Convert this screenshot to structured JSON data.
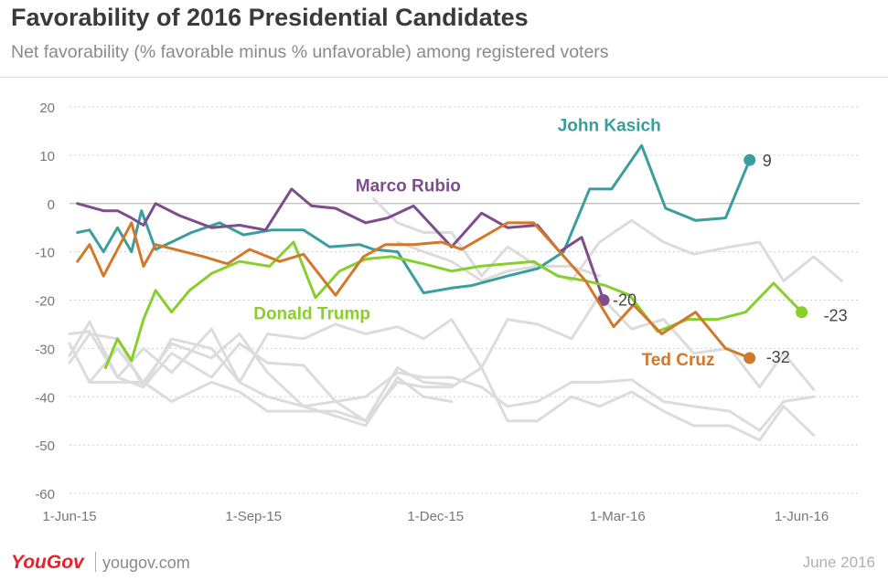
{
  "header": {
    "title": "Favorability of 2016 Presidential Candidates",
    "subtitle": "Net favorability (% favorable minus % unfavorable) among registered voters"
  },
  "footer": {
    "logo": "YouGov",
    "site": "yougov.com",
    "date": "June 2016"
  },
  "chart_data": {
    "type": "line",
    "title": "Favorability of 2016 Presidential Candidates",
    "subtitle": "Net favorability (% favorable minus % unfavorable) among registered voters",
    "xlabel": "",
    "ylabel": "",
    "ylim": [
      -60,
      20
    ],
    "yticks": [
      20,
      10,
      0,
      -10,
      -20,
      -30,
      -40,
      -50,
      -60
    ],
    "xticks": [
      {
        "date": "2015-06-01",
        "label": "1-Jun-15"
      },
      {
        "date": "2015-09-01",
        "label": "1-Sep-15"
      },
      {
        "date": "2015-12-01",
        "label": "1-Dec-15"
      },
      {
        "date": "2016-03-01",
        "label": "1-Mar-16"
      },
      {
        "date": "2016-06-01",
        "label": "1-Jun-16"
      }
    ],
    "xlim": [
      "2015-06-01",
      "2016-06-30"
    ],
    "grid": "horizontal dotted",
    "background_series_color": "#dcdcdc",
    "series": [
      {
        "name": "John Kasich",
        "color": "#3a9e9e",
        "end_label": "9",
        "points": [
          [
            "2015-06-05",
            -6
          ],
          [
            "2015-06-11",
            -5.5
          ],
          [
            "2015-06-18",
            -10
          ],
          [
            "2015-06-25",
            -5
          ],
          [
            "2015-07-02",
            -10
          ],
          [
            "2015-07-07",
            -1.5
          ],
          [
            "2015-07-14",
            -9.5
          ],
          [
            "2015-07-22",
            -8
          ],
          [
            "2015-08-01",
            -6
          ],
          [
            "2015-08-15",
            -4
          ],
          [
            "2015-08-27",
            -6.5
          ],
          [
            "2015-09-10",
            -5.5
          ],
          [
            "2015-09-26",
            -5.5
          ],
          [
            "2015-10-09",
            -9
          ],
          [
            "2015-10-24",
            -8.5
          ],
          [
            "2015-10-31",
            -9.5
          ],
          [
            "2015-11-12",
            -10
          ],
          [
            "2015-11-25",
            -18.5
          ],
          [
            "2015-12-09",
            -17.5
          ],
          [
            "2015-12-19",
            -17
          ],
          [
            "2016-01-06",
            -15
          ],
          [
            "2016-01-21",
            -13.5
          ],
          [
            "2016-02-03",
            -10
          ],
          [
            "2016-02-16",
            3
          ],
          [
            "2016-02-27",
            3
          ],
          [
            "2016-03-13",
            12
          ],
          [
            "2016-03-25",
            -1
          ],
          [
            "2016-04-09",
            -3.5
          ],
          [
            "2016-04-24",
            -3
          ],
          [
            "2016-05-06",
            9
          ]
        ]
      },
      {
        "name": "Marco Rubio",
        "color": "#7d4d8c",
        "end_label": "-20",
        "points": [
          [
            "2015-06-05",
            0
          ],
          [
            "2015-06-18",
            -1.5
          ],
          [
            "2015-06-25",
            -1.5
          ],
          [
            "2015-07-02",
            -3
          ],
          [
            "2015-07-08",
            -4.5
          ],
          [
            "2015-07-14",
            0
          ],
          [
            "2015-07-26",
            -2.5
          ],
          [
            "2015-08-11",
            -5
          ],
          [
            "2015-08-25",
            -4.5
          ],
          [
            "2015-09-07",
            -5.5
          ],
          [
            "2015-09-20",
            3
          ],
          [
            "2015-09-30",
            -0.5
          ],
          [
            "2015-10-12",
            -1
          ],
          [
            "2015-10-27",
            -4
          ],
          [
            "2015-11-07",
            -3
          ],
          [
            "2015-11-20",
            -0.5
          ],
          [
            "2015-12-09",
            -9
          ],
          [
            "2015-12-24",
            -2
          ],
          [
            "2016-01-06",
            -5
          ],
          [
            "2016-01-21",
            -4.5
          ],
          [
            "2016-02-01",
            -10
          ],
          [
            "2016-02-12",
            -7
          ],
          [
            "2016-02-23",
            -20
          ]
        ]
      },
      {
        "name": "Donald Trump",
        "color": "#88cf2b",
        "end_label": "-23",
        "points": [
          [
            "2015-06-19",
            -34
          ],
          [
            "2015-06-25",
            -28
          ],
          [
            "2015-07-02",
            -32.5
          ],
          [
            "2015-07-08",
            -24
          ],
          [
            "2015-07-14",
            -18
          ],
          [
            "2015-07-22",
            -22.5
          ],
          [
            "2015-07-31",
            -18
          ],
          [
            "2015-08-11",
            -14.5
          ],
          [
            "2015-08-25",
            -12
          ],
          [
            "2015-09-09",
            -13
          ],
          [
            "2015-09-21",
            -8
          ],
          [
            "2015-10-02",
            -19.5
          ],
          [
            "2015-10-14",
            -14
          ],
          [
            "2015-10-27",
            -11.5
          ],
          [
            "2015-11-09",
            -11
          ],
          [
            "2015-11-25",
            -12.5
          ],
          [
            "2015-12-09",
            -14
          ],
          [
            "2015-12-23",
            -13
          ],
          [
            "2016-01-06",
            -12.5
          ],
          [
            "2016-01-19",
            -12
          ],
          [
            "2016-01-31",
            -15
          ],
          [
            "2016-02-14",
            -16
          ],
          [
            "2016-02-24",
            -17
          ],
          [
            "2016-03-07",
            -19
          ],
          [
            "2016-03-21",
            -26.5
          ],
          [
            "2016-04-05",
            -24
          ],
          [
            "2016-04-20",
            -24
          ],
          [
            "2016-05-04",
            -22.5
          ],
          [
            "2016-05-18",
            -16.5
          ],
          [
            "2016-06-01",
            -22.5
          ]
        ]
      },
      {
        "name": "Ted Cruz",
        "color": "#d2782b",
        "end_label": "-32",
        "points": [
          [
            "2015-06-05",
            -12
          ],
          [
            "2015-06-11",
            -8.5
          ],
          [
            "2015-06-18",
            -15
          ],
          [
            "2015-07-02",
            -4
          ],
          [
            "2015-07-08",
            -13
          ],
          [
            "2015-07-14",
            -8.5
          ],
          [
            "2015-08-07",
            -11
          ],
          [
            "2015-08-19",
            -12.5
          ],
          [
            "2015-08-30",
            -9.5
          ],
          [
            "2015-09-14",
            -12
          ],
          [
            "2015-09-26",
            -10.5
          ],
          [
            "2015-10-12",
            -19
          ],
          [
            "2015-10-26",
            -11
          ],
          [
            "2015-11-06",
            -8.5
          ],
          [
            "2015-11-20",
            -8.5
          ],
          [
            "2015-12-04",
            -8
          ],
          [
            "2015-12-14",
            -9.5
          ],
          [
            "2016-01-06",
            -4
          ],
          [
            "2016-01-19",
            -4
          ],
          [
            "2016-01-31",
            -9.5
          ],
          [
            "2016-02-14",
            -16
          ],
          [
            "2016-02-28",
            -25.5
          ],
          [
            "2016-03-09",
            -21
          ],
          [
            "2016-03-23",
            -27
          ],
          [
            "2016-04-09",
            -22.5
          ],
          [
            "2016-04-24",
            -30
          ],
          [
            "2016-05-06",
            -32
          ]
        ]
      }
    ],
    "background_series": [
      [
        [
          "2015-06-01",
          -27
        ],
        [
          "2015-06-11",
          -26.5
        ],
        [
          "2015-06-25",
          -36
        ],
        [
          "2015-07-08",
          -30
        ],
        [
          "2015-07-22",
          -35
        ],
        [
          "2015-08-11",
          -26
        ],
        [
          "2015-08-25",
          -37
        ],
        [
          "2015-09-08",
          -40
        ],
        [
          "2015-09-26",
          -42
        ],
        [
          "2015-10-12",
          -41
        ],
        [
          "2015-10-27",
          -40
        ],
        [
          "2015-11-12",
          -35
        ],
        [
          "2015-11-25",
          -36
        ],
        [
          "2015-12-09",
          -36
        ],
        [
          "2015-12-24",
          -38
        ],
        [
          "2016-01-06",
          -42
        ],
        [
          "2016-01-21",
          -41
        ],
        [
          "2016-02-07",
          -37
        ],
        [
          "2016-02-21",
          -37
        ],
        [
          "2016-03-08",
          -36.5
        ],
        [
          "2016-03-24",
          -41
        ],
        [
          "2016-04-08",
          -42
        ],
        [
          "2016-04-26",
          -43
        ],
        [
          "2016-05-11",
          -47
        ],
        [
          "2016-05-23",
          -41
        ],
        [
          "2016-06-07",
          -40
        ]
      ],
      [
        [
          "2015-06-01",
          -29
        ],
        [
          "2015-06-11",
          -37
        ],
        [
          "2015-06-25",
          -30
        ],
        [
          "2015-07-08",
          -37
        ],
        [
          "2015-07-22",
          -41
        ],
        [
          "2015-08-11",
          -37
        ],
        [
          "2015-08-25",
          -39
        ],
        [
          "2015-09-08",
          -43
        ],
        [
          "2015-09-26",
          -43
        ],
        [
          "2015-10-12",
          -43
        ],
        [
          "2015-10-27",
          -45
        ],
        [
          "2015-11-12",
          -37
        ],
        [
          "2015-11-25",
          -38
        ],
        [
          "2015-12-09",
          -38
        ],
        [
          "2015-12-24",
          -34
        ],
        [
          "2016-01-06",
          -45
        ],
        [
          "2016-01-21",
          -45
        ],
        [
          "2016-02-07",
          -40
        ],
        [
          "2016-02-21",
          -42
        ],
        [
          "2016-03-08",
          -39
        ],
        [
          "2016-03-24",
          -43
        ],
        [
          "2016-04-08",
          -46
        ],
        [
          "2016-04-26",
          -46
        ],
        [
          "2016-05-11",
          -49
        ],
        [
          "2016-05-23",
          -42
        ],
        [
          "2016-06-07",
          -48
        ]
      ],
      [
        [
          "2015-06-01",
          -31.5
        ],
        [
          "2015-06-11",
          -24.5
        ],
        [
          "2015-06-25",
          -36
        ],
        [
          "2015-07-08",
          -38
        ],
        [
          "2015-07-22",
          -31
        ],
        [
          "2015-08-11",
          -36
        ],
        [
          "2015-08-25",
          -29
        ],
        [
          "2015-09-08",
          -33
        ],
        [
          "2015-09-26",
          -33.5
        ],
        [
          "2015-10-12",
          -41
        ],
        [
          "2015-10-27",
          -45
        ],
        [
          "2015-11-12",
          -34
        ],
        [
          "2015-11-25",
          -37
        ],
        [
          "2015-12-09",
          -37.5
        ]
      ],
      [
        [
          "2015-06-11",
          -37
        ],
        [
          "2015-06-25",
          -37
        ],
        [
          "2015-07-08",
          -37
        ],
        [
          "2015-07-22",
          -29
        ],
        [
          "2015-08-11",
          -32
        ],
        [
          "2015-08-25",
          -27
        ],
        [
          "2015-09-08",
          -35
        ],
        [
          "2015-09-26",
          -42
        ],
        [
          "2015-10-12",
          -44
        ],
        [
          "2015-10-27",
          -46
        ],
        [
          "2015-11-12",
          -36
        ],
        [
          "2015-11-25",
          -40
        ],
        [
          "2015-12-09",
          -41
        ]
      ],
      [
        [
          "2015-06-01",
          -33
        ],
        [
          "2015-06-11",
          -27
        ],
        [
          "2015-06-25",
          -28
        ],
        [
          "2015-07-08",
          -38
        ],
        [
          "2015-07-22",
          -28
        ],
        [
          "2015-08-11",
          -30
        ],
        [
          "2015-08-25",
          -37
        ],
        [
          "2015-09-08",
          -27
        ],
        [
          "2015-09-26",
          -28
        ],
        [
          "2015-10-12",
          -25
        ],
        [
          "2015-10-27",
          -27
        ],
        [
          "2015-11-12",
          -25.5
        ],
        [
          "2015-11-25",
          -28
        ],
        [
          "2015-12-09",
          -24
        ],
        [
          "2015-12-24",
          -34
        ],
        [
          "2016-01-06",
          -24
        ],
        [
          "2016-01-21",
          -25
        ],
        [
          "2016-02-07",
          -28
        ],
        [
          "2016-02-21",
          -19
        ],
        [
          "2016-03-08",
          -26
        ],
        [
          "2016-03-24",
          -24
        ],
        [
          "2016-04-08",
          -31
        ],
        [
          "2016-04-26",
          -30
        ],
        [
          "2016-05-11",
          -38
        ],
        [
          "2016-05-23",
          -31
        ],
        [
          "2016-06-07",
          -38.5
        ]
      ],
      [
        [
          "2015-10-31",
          1
        ],
        [
          "2015-11-12",
          -4
        ],
        [
          "2015-11-25",
          -6
        ],
        [
          "2015-12-09",
          -6
        ],
        [
          "2015-12-24",
          -15
        ],
        [
          "2016-01-06",
          -9
        ],
        [
          "2016-01-21",
          -13
        ],
        [
          "2016-02-07",
          -16
        ],
        [
          "2016-02-21",
          -8
        ],
        [
          "2016-03-08",
          -3.5
        ],
        [
          "2016-03-24",
          -8
        ],
        [
          "2016-04-08",
          -10.5
        ],
        [
          "2016-04-26",
          -9
        ],
        [
          "2016-05-11",
          -8
        ],
        [
          "2016-05-23",
          -16
        ],
        [
          "2016-06-07",
          -11
        ],
        [
          "2016-06-21",
          -16
        ]
      ],
      [
        [
          "2015-11-12",
          -8
        ],
        [
          "2015-11-25",
          -10
        ],
        [
          "2015-12-09",
          -12
        ],
        [
          "2015-12-24",
          -16
        ],
        [
          "2016-01-06",
          -14
        ],
        [
          "2016-01-21",
          -13
        ],
        [
          "2016-02-07",
          -13
        ],
        [
          "2016-02-21",
          -15
        ]
      ]
    ],
    "labels": [
      {
        "series": "John Kasich",
        "text": "John Kasich",
        "x": "2016-01-31",
        "y": 15
      },
      {
        "series": "Marco Rubio",
        "text": "Marco Rubio",
        "x": "2015-10-22",
        "y": 2.5
      },
      {
        "series": "Donald Trump",
        "text": "Donald Trump",
        "x": "2015-09-01",
        "y": -24
      },
      {
        "series": "Ted Cruz",
        "text": "Ted Cruz",
        "x": "2016-03-13",
        "y": -33.5
      }
    ]
  }
}
